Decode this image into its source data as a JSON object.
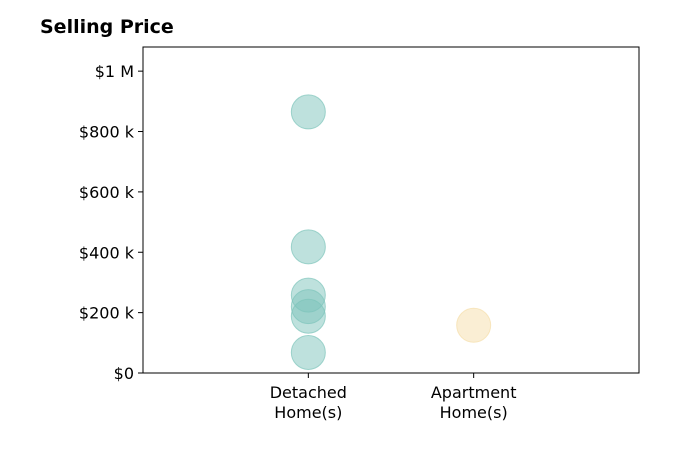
{
  "chart_data": {
    "type": "scatter",
    "title": "Selling Price",
    "categories": [
      "Detached Home(s)",
      "Apartment Home(s)"
    ],
    "category_label_lines": [
      [
        "Detached",
        "Home(s)"
      ],
      [
        "Apartment",
        "Home(s)"
      ]
    ],
    "series": [
      {
        "category": "Detached Home(s)",
        "color": "#7ec4bb",
        "values": [
          865000,
          418000,
          258000,
          220000,
          188000,
          68000
        ]
      },
      {
        "category": "Apartment Home(s)",
        "color": "#f5deaa",
        "values": [
          158000
        ]
      }
    ],
    "y_ticks": [
      0,
      200000,
      400000,
      600000,
      800000,
      1000000
    ],
    "y_tick_labels": [
      "$0",
      "$200 k",
      "$400 k",
      "$600 k",
      "$800 k",
      "$1 M"
    ],
    "ylim": [
      0,
      1080000
    ],
    "x_range": [
      -1,
      2
    ],
    "xlabel": "",
    "ylabel": "",
    "grid": false
  }
}
